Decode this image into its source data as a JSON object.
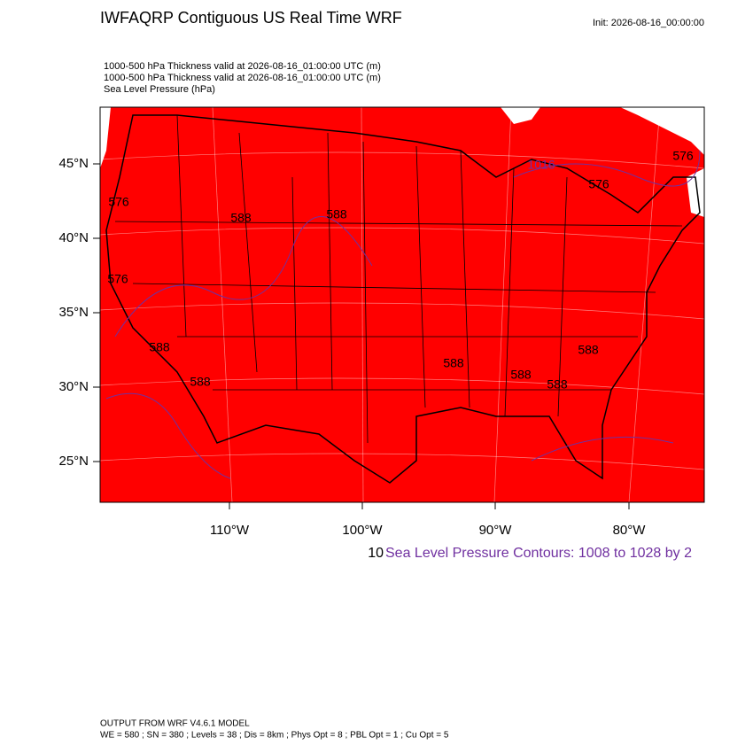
{
  "header": {
    "title": "IWFAQRP Contiguous US Real Time WRF",
    "init": "Init: 2026-08-16_00:00:00",
    "fields": [
      "1000-500 hPa Thickness valid at 2026-08-16_01:00:00 UTC   (m)",
      "1000-500 hPa Thickness valid at 2026-08-16_01:00:00 UTC   (m)",
      "Sea Level Pressure   (hPa)"
    ]
  },
  "map": {
    "lat_labels": [
      "45°N",
      "40°N",
      "35°N",
      "30°N",
      "25°N"
    ],
    "lon_labels": [
      "110°W",
      "100°W",
      "90°W",
      "80°W"
    ],
    "contour_labels": [
      "576",
      "576",
      "576",
      "576",
      "588",
      "588",
      "588",
      "588",
      "588",
      "588",
      "588",
      "588",
      "1016"
    ]
  },
  "legend": {
    "prefix": "10",
    "text": "Sea Level Pressure Contours: 1008 to 1028 by 2"
  },
  "footer": {
    "model": "OUTPUT FROM WRF V4.6.1 MODEL",
    "settings": "WE = 580 ; SN = 380 ; Levels = 38 ; Dis = 8km ; Phys Opt = 8 ; PBL Opt = 1 ; Cu Opt = 5"
  }
}
